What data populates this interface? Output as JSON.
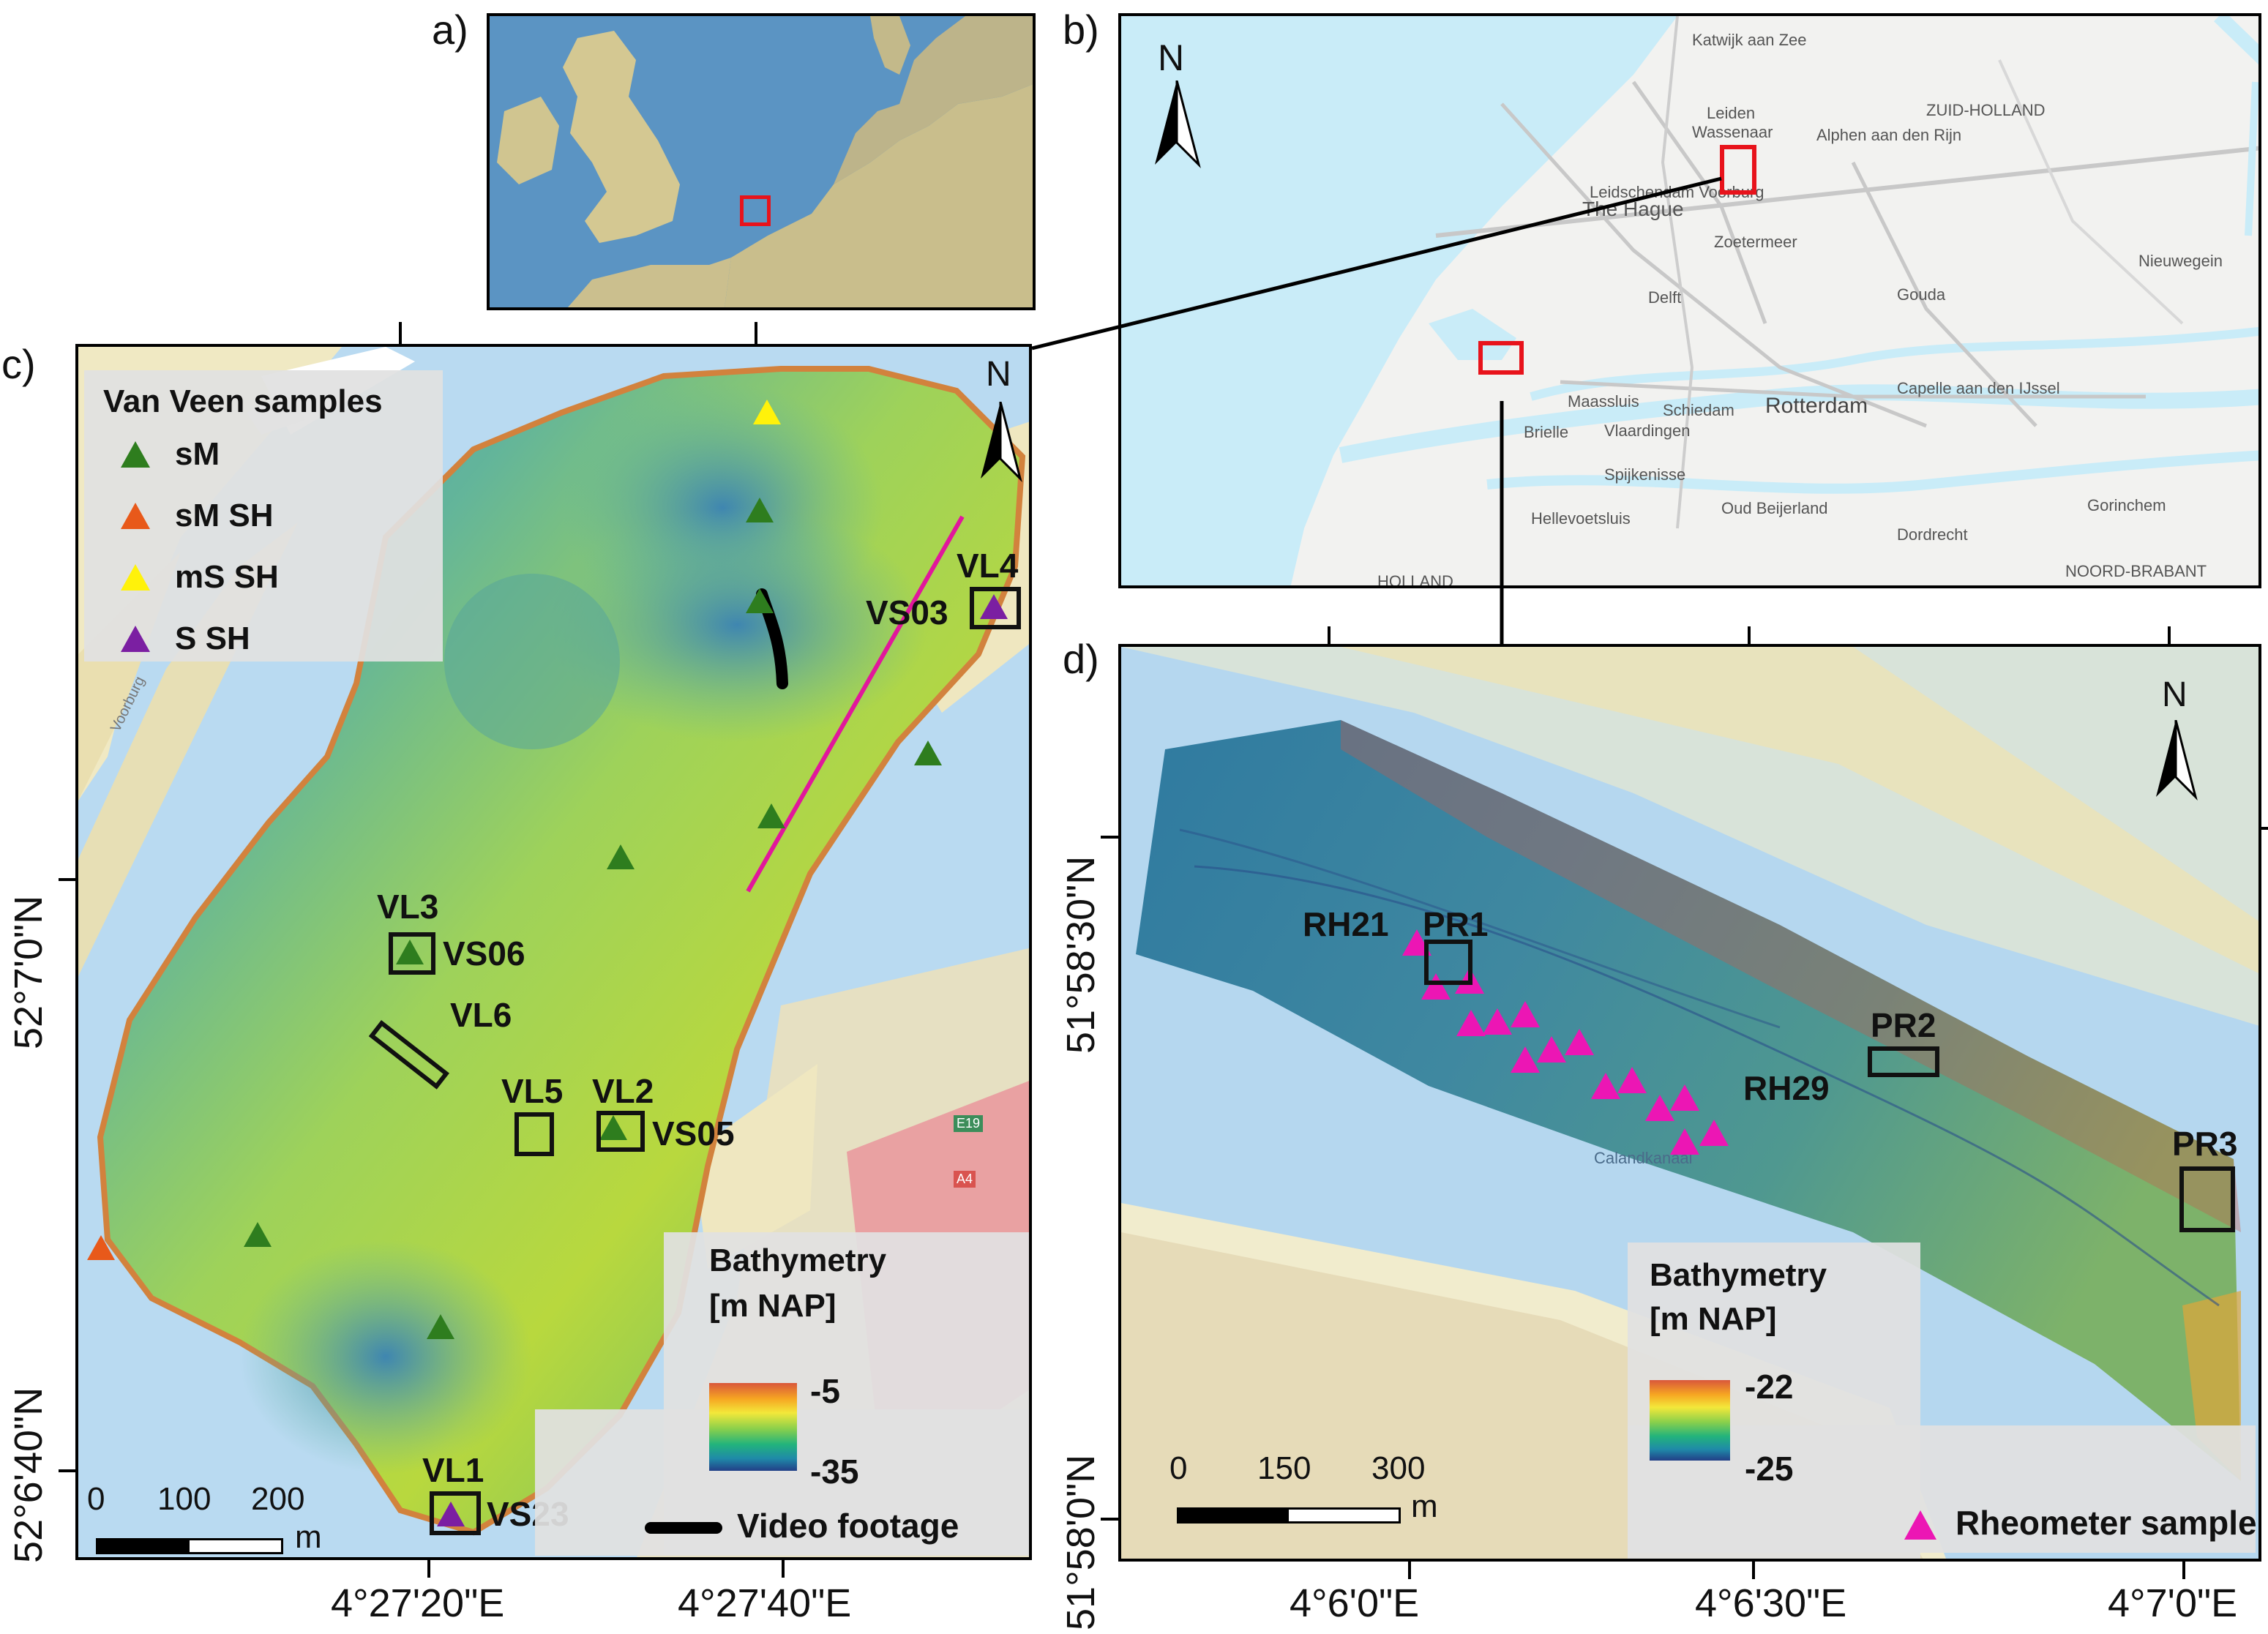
{
  "panels": {
    "a": "a)",
    "b": "b)",
    "c": "c)",
    "d": "d)"
  },
  "north": "N",
  "colors": {
    "sM": "#2e7d1e",
    "sM_SH": "#e8591a",
    "mS_SH": "#fff20a",
    "S_SH": "#7b1fa2",
    "rheometer": "#ec16b4",
    "video": "#000000",
    "transect": "#e1179c",
    "overview_box": "#e8131b"
  },
  "panel_b": {
    "places": [
      "Katwijk aan Zee",
      "Leiden",
      "Wassenaar",
      "Alphen aan den Rijn",
      "ZUID-HOLLAND",
      "Leidschendam Voorburg",
      "The Hague",
      "Zoetermeer",
      "Delft",
      "Gouda",
      "Nieuwegein",
      "Maassluis",
      "Schiedam",
      "Rotterdam",
      "Capelle aan den IJssel",
      "Brielle",
      "Vlaardingen",
      "Spijkenisse",
      "Hellevoetsluis",
      "Oud Beijerland",
      "Dordrecht",
      "Gorinchem",
      "NOORD-BRABANT",
      "HOLLAND"
    ]
  },
  "panel_c": {
    "legend": {
      "title": "Van Veen samples",
      "items": [
        {
          "label": "sM",
          "color": "#2e7d1e"
        },
        {
          "label": "sM SH",
          "color": "#e8591a"
        },
        {
          "label": "mS SH",
          "color": "#fff20a"
        },
        {
          "label": "S SH",
          "color": "#7b1fa2"
        }
      ]
    },
    "labels": {
      "VL4": "VL4",
      "VS03": "VS03",
      "VL3": "VL3",
      "VS06": "VS06",
      "VL6": "VL6",
      "VL5": "VL5",
      "VL2": "VL2",
      "VS05": "VS05",
      "VL1": "VL1",
      "VS23": "VS23"
    },
    "bathymetry": {
      "title_1": "Bathymetry",
      "title_2": "[m NAP]",
      "max": "-5",
      "min": "-35"
    },
    "video_label": "Video footage",
    "scale": {
      "t0": "0",
      "t1": "100",
      "t2": "200",
      "unit": "m"
    },
    "lat_top": "52°7'0\"N",
    "lat_bottom": "52°6'40\"N",
    "lon_left": "4°27'20\"E",
    "lon_right": "4°27'40\"E",
    "road_label_a4": "A4",
    "road_label_e19": "E19",
    "street_label": "Voorburg"
  },
  "panel_d": {
    "labels": {
      "RH21": "RH21",
      "PR1": "PR1",
      "PR2": "PR2",
      "RH29": "RH29",
      "PR3": "PR3"
    },
    "canal": "Calandkanaal",
    "bathymetry": {
      "title_1": "Bathymetry",
      "title_2": "[m NAP]",
      "max": "-22",
      "min": "-25"
    },
    "rheometer_label": "Rheometer sample",
    "scale": {
      "t0": "0",
      "t1": "150",
      "t2": "300",
      "unit": "m"
    },
    "lat_top": "51°58'30\"N",
    "lat_bottom": "51°58'0\"N",
    "lon_1": "4°6'0\"E",
    "lon_2": "4°6'30\"E",
    "lon_3": "4°7'0\"E"
  }
}
